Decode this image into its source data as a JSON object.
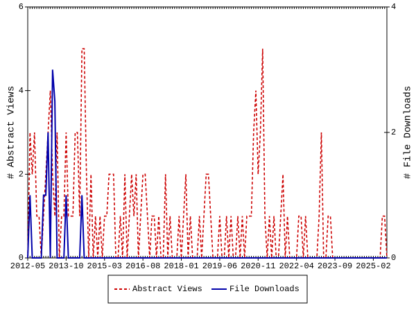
{
  "chart_data": {
    "type": "line",
    "ylabel": "# Abstract Views",
    "y2label": "# File Downloads",
    "categories": [
      "2012-05",
      null,
      null,
      null,
      null,
      null,
      null,
      null,
      null,
      null,
      null,
      null,
      null,
      null,
      null,
      null,
      null,
      "2013-10",
      null,
      null,
      null,
      null,
      null,
      null,
      null,
      null,
      null,
      null,
      null,
      null,
      null,
      null,
      null,
      null,
      "2015-03",
      null,
      null,
      null,
      null,
      null,
      null,
      null,
      null,
      null,
      null,
      null,
      null,
      null,
      null,
      null,
      null,
      "2016-08",
      null,
      null,
      null,
      null,
      null,
      null,
      null,
      null,
      null,
      null,
      null,
      null,
      null,
      null,
      null,
      null,
      "2018-01",
      null,
      null,
      null,
      null,
      null,
      null,
      null,
      null,
      null,
      null,
      null,
      null,
      null,
      null,
      null,
      null,
      "2019-06",
      null,
      null,
      null,
      null,
      null,
      null,
      null,
      null,
      null,
      null,
      null,
      null,
      null,
      null,
      null,
      null,
      "2020-11",
      null,
      null,
      null,
      null,
      null,
      null,
      null,
      null,
      null,
      null,
      null,
      null,
      null,
      null,
      null,
      null,
      "2022-04",
      null,
      null,
      null,
      null,
      null,
      null,
      null,
      null,
      null,
      null,
      null,
      null,
      null,
      null,
      null,
      null,
      "2023-09",
      null,
      null,
      null,
      null,
      null,
      null,
      null,
      null,
      null,
      null,
      null,
      null,
      null,
      null,
      null,
      null,
      "2025-02",
      null,
      null,
      null,
      null,
      null,
      null
    ],
    "series": [
      {
        "name": "Abstract Views",
        "color": "#cc0000",
        "dashed": true,
        "axis": "y",
        "values": [
          0,
          3,
          2,
          3,
          1,
          1,
          0,
          1,
          2,
          3,
          4,
          2,
          1,
          3,
          0,
          1,
          1,
          3,
          1,
          1,
          1,
          3,
          3,
          1,
          5,
          5,
          2,
          0,
          2,
          0,
          1,
          0,
          1,
          0,
          1,
          1,
          2,
          2,
          2,
          0,
          0,
          1,
          0,
          2,
          0,
          1,
          2,
          1,
          2,
          0,
          1,
          2,
          2,
          1,
          0,
          1,
          1,
          0,
          1,
          0,
          0,
          2,
          0,
          1,
          0,
          0,
          0,
          1,
          0,
          1,
          2,
          0,
          1,
          0,
          0,
          0,
          1,
          0,
          1,
          2,
          2,
          1,
          0,
          0,
          0,
          1,
          0,
          0,
          1,
          0,
          1,
          0,
          0,
          1,
          0,
          1,
          0,
          1,
          1,
          1,
          3,
          4,
          2,
          3,
          5,
          1,
          0,
          1,
          0,
          1,
          0,
          0,
          1,
          2,
          0,
          1,
          0,
          0,
          0,
          0,
          1,
          1,
          0,
          1,
          0,
          0,
          0,
          0,
          0,
          1,
          3,
          0,
          0,
          1,
          1,
          0,
          0,
          0,
          0,
          0,
          0,
          0,
          0,
          0,
          0,
          0,
          0,
          0,
          0,
          0,
          0,
          0,
          0,
          0,
          0,
          0,
          0,
          1,
          1,
          0
        ]
      },
      {
        "name": "File Downloads",
        "color": "#0000aa",
        "dashed": false,
        "axis": "y2",
        "values": [
          0,
          1,
          0,
          0,
          0,
          0,
          0,
          1,
          1,
          2,
          0,
          3,
          2.5,
          0,
          0,
          0,
          0,
          1,
          0,
          0,
          0,
          0,
          0,
          0,
          1,
          0,
          0,
          0,
          0,
          0,
          0,
          0,
          0,
          0,
          0,
          0,
          0,
          0,
          0,
          0,
          0,
          0,
          0,
          0,
          0,
          0,
          0,
          0,
          0,
          0,
          0,
          0,
          0,
          0,
          0,
          0,
          0,
          0,
          0,
          0,
          0,
          0,
          0,
          0,
          0,
          0,
          0,
          0,
          0,
          0,
          0,
          0,
          0,
          0,
          0,
          0,
          0,
          0,
          0,
          0,
          0,
          0,
          0,
          0,
          0,
          0,
          0,
          0,
          0,
          0,
          0,
          0,
          0,
          0,
          0,
          0,
          0,
          0,
          0,
          0,
          0,
          0,
          0,
          0,
          0,
          0,
          0,
          0,
          0,
          0,
          0,
          0,
          0,
          0,
          0,
          0,
          0,
          0,
          0,
          0,
          0,
          0,
          0,
          0,
          0,
          0,
          0,
          0,
          0,
          0,
          0,
          0,
          0,
          0,
          0,
          0,
          0,
          0,
          0,
          0,
          0,
          0,
          0,
          0,
          0,
          0,
          0,
          0,
          0,
          0,
          0,
          0,
          0,
          0,
          0,
          0,
          0,
          0,
          0,
          0
        ]
      }
    ],
    "ylim": [
      0,
      6
    ],
    "yticks": [
      0,
      2,
      4,
      6
    ],
    "y2lim": [
      0,
      4
    ],
    "y2ticks": [
      0,
      2,
      4
    ],
    "grid": false,
    "legend": "bottom"
  }
}
